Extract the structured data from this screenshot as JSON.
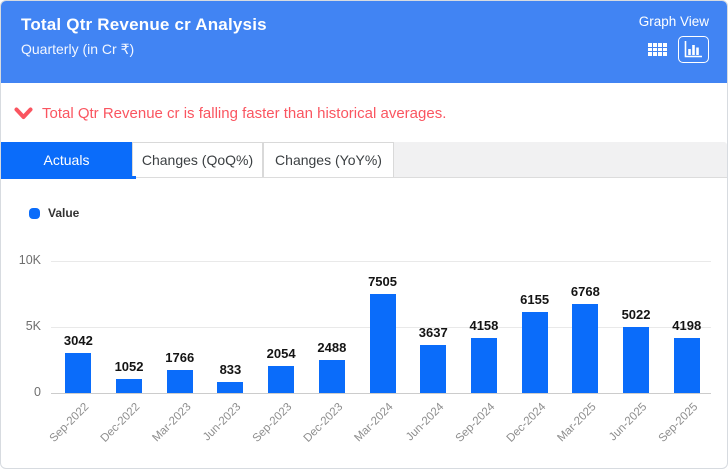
{
  "header": {
    "title": "Total Qtr Revenue cr Analysis",
    "subtitle": "Quarterly (in Cr ₹)",
    "view_label": "Graph View"
  },
  "alert": {
    "message": "Total Qtr Revenue cr is falling faster than historical averages."
  },
  "tabs": {
    "items": [
      {
        "label": "Actuals",
        "active": true
      },
      {
        "label": "Changes (QoQ%)",
        "active": false
      },
      {
        "label": "Changes (YoY%)",
        "active": false
      }
    ]
  },
  "legend": {
    "label": "Value"
  },
  "chart_data": {
    "type": "bar",
    "title": "",
    "xlabel": "",
    "ylabel": "",
    "categories": [
      "Sep-2022",
      "Dec-2022",
      "Mar-2023",
      "Jun-2023",
      "Sep-2023",
      "Dec-2023",
      "Mar-2024",
      "Jun-2024",
      "Sep-2024",
      "Dec-2024",
      "Mar-2025",
      "Jun-2025",
      "Sep-2025"
    ],
    "series": [
      {
        "name": "Value",
        "values": [
          3042,
          1052,
          1766,
          833,
          2054,
          2488,
          7505,
          3637,
          4158,
          6155,
          6768,
          5022,
          4198
        ]
      }
    ],
    "ylim": [
      0,
      10000
    ],
    "yticks": [
      {
        "value": 0,
        "label": "0"
      },
      {
        "value": 5000,
        "label": "5K"
      },
      {
        "value": 10000,
        "label": "10K"
      }
    ],
    "grid": true,
    "legend_position": "top-left",
    "bar_color": "#0a6cfa",
    "value_labels": true
  },
  "colors": {
    "header_bg": "#4184f3",
    "accent_blue": "#0a6cfa",
    "alert_red": "#fa5560",
    "tab_filler_bg": "#f1f1f2",
    "gridline": "#e9e9e9",
    "axis_label": "#8e8e8e",
    "value_label": "#141414"
  }
}
